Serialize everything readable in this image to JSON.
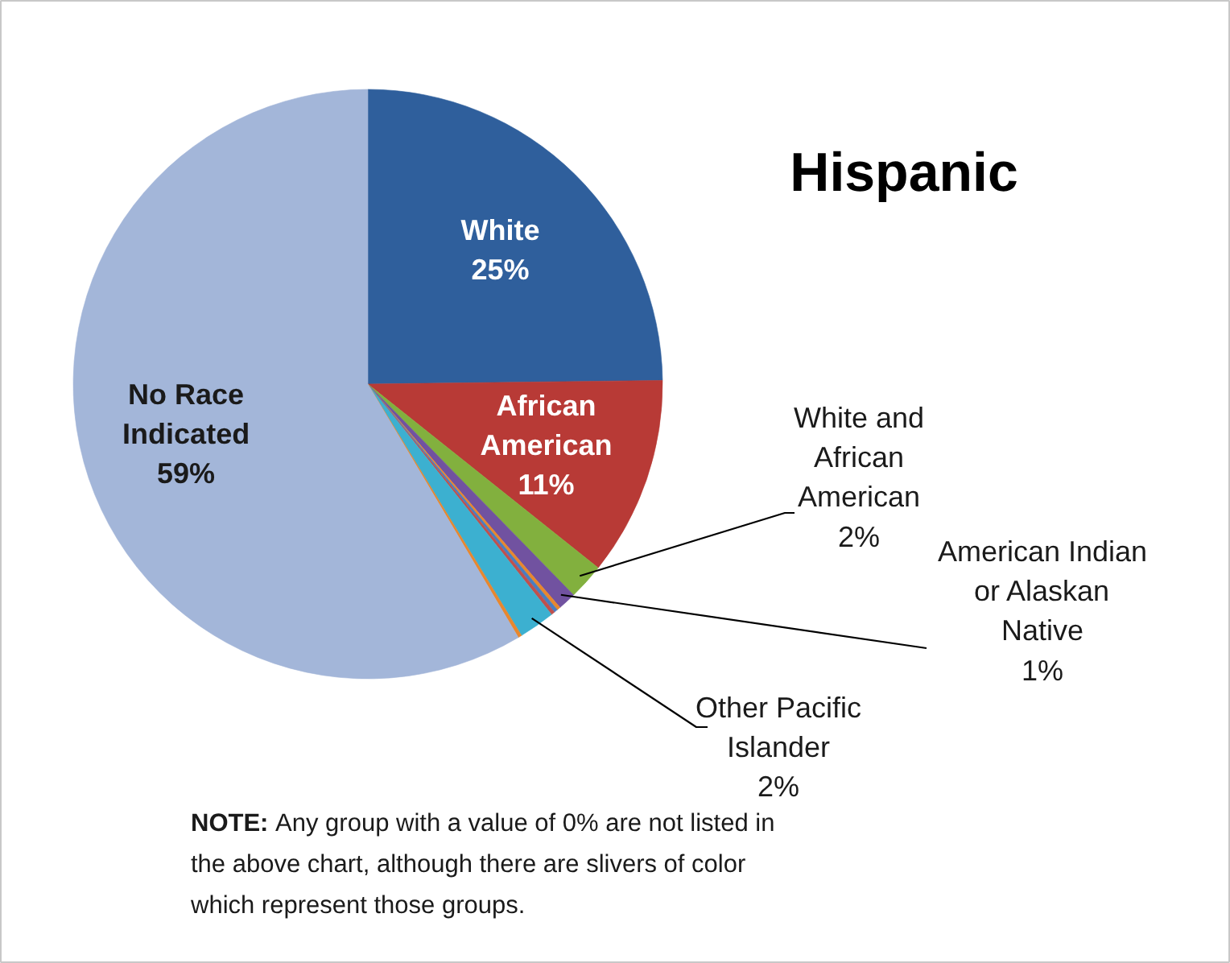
{
  "chart_data": {
    "type": "pie",
    "title": "Hispanic",
    "categories": [
      "White",
      "African American",
      "White and African American",
      "American Indian or Alaskan Native",
      null,
      null,
      null,
      "Other Pacific Islander",
      null,
      "No Race Indicated"
    ],
    "values": [
      25,
      11,
      2,
      1,
      0.2,
      0.2,
      0.2,
      2,
      0.2,
      59
    ],
    "value_labels": [
      "25%",
      "11%",
      "2%",
      "1%",
      null,
      null,
      null,
      "2%",
      null,
      "59%"
    ],
    "colors": [
      "#2f5f9c",
      "#b83a36",
      "#82b03e",
      "#7152a0",
      "#e8872e",
      "#4a7dc0",
      "#c0504d",
      "#3cb0d0",
      "#e8872e",
      "#a3b6d9"
    ],
    "annotations": [
      "NOTE: Any group with a value of 0% are not listed in the above chart, although there are slivers of color which represent  those groups."
    ]
  }
}
